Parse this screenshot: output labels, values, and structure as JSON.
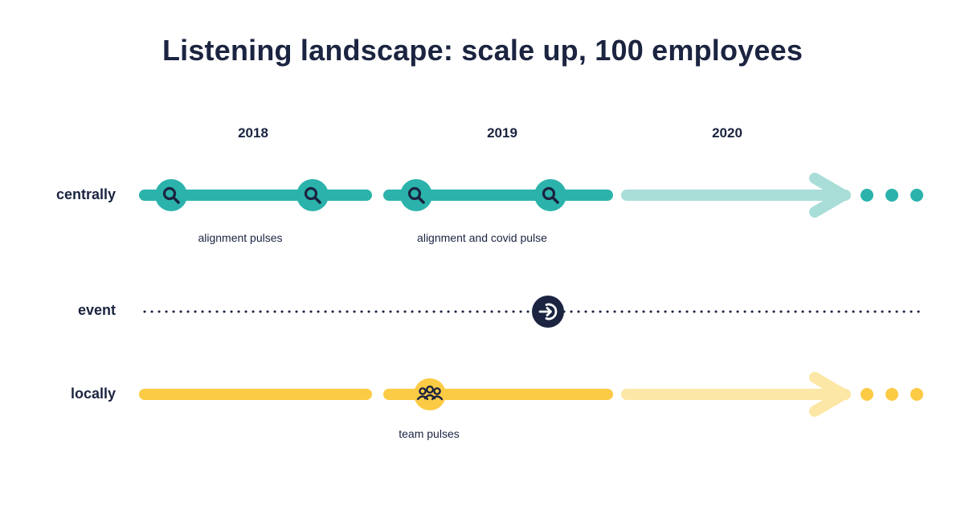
{
  "title": "Listening landscape: scale up, 100 employees",
  "years": [
    "2018",
    "2019",
    "2020"
  ],
  "rows": {
    "centrally": "centrally",
    "event": "event",
    "locally": "locally"
  },
  "captions": {
    "central_2018": "alignment pulses",
    "central_2019": "alignment and covid pulse",
    "local_2019": "team pulses"
  },
  "icons": {
    "pulse": "magnifier-icon",
    "event": "arrow-into-circle-icon",
    "team": "team-people-icon"
  },
  "colors": {
    "central": "#2bb3ab",
    "central_future": "#a9ddd8",
    "local": "#fccb45",
    "local_future": "#fde7a6",
    "event": "#1b2440"
  }
}
